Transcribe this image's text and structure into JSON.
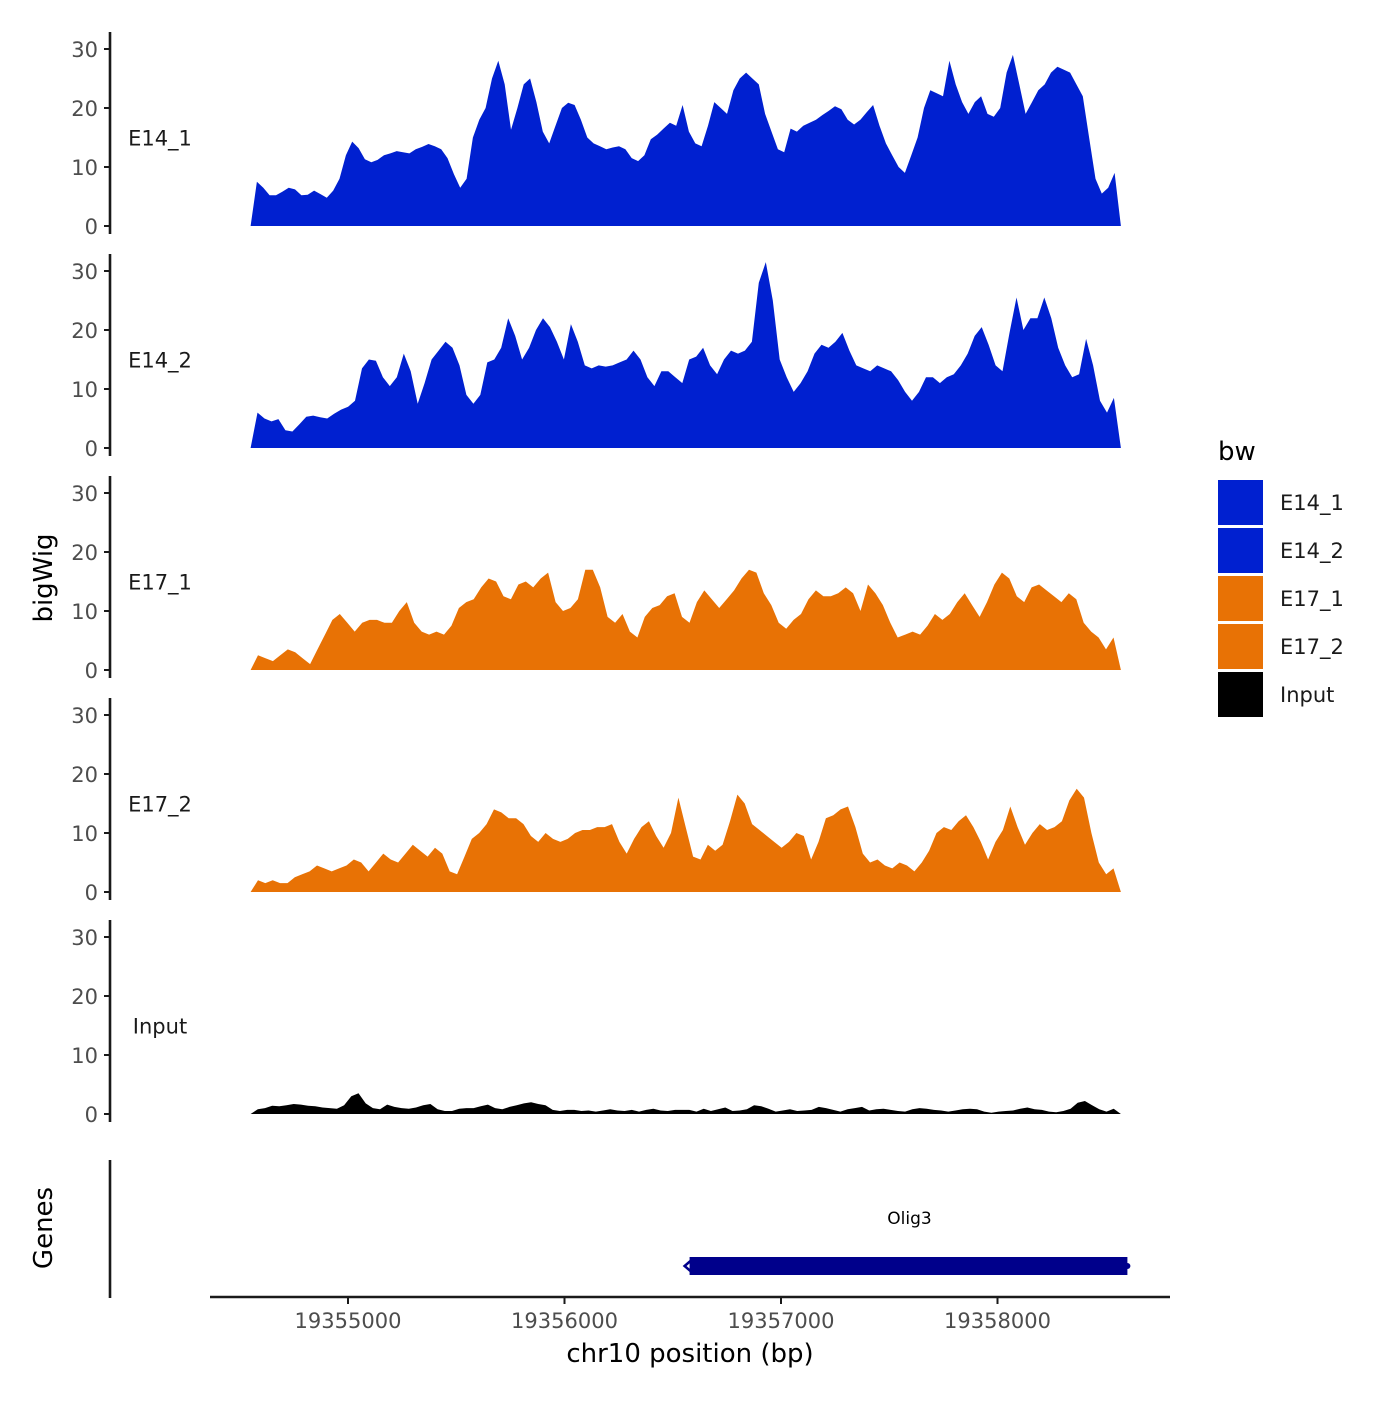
{
  "chart_data": {
    "type": "area",
    "title": "",
    "ylabel": "bigWig",
    "xlabel": "chr10 position (bp)",
    "chromosome": "chr10",
    "x_range": [
      19354550,
      19358570
    ],
    "xlim": [
      19354250,
      19358700
    ],
    "ylim": [
      0,
      32
    ],
    "x_ticks": [
      19355000,
      19356000,
      19357000,
      19358000
    ],
    "x_tick_labels": [
      "19355000",
      "19356000",
      "19357000",
      "19358000"
    ],
    "y_ticks": [
      0,
      10,
      20,
      30
    ],
    "y_tick_labels": [
      "0",
      "10",
      "20",
      "30"
    ],
    "legend": {
      "title": "bw",
      "position": "right",
      "entries": [
        {
          "label": "E14_1",
          "color": "#0020D0"
        },
        {
          "label": "E14_2",
          "color": "#0020D0"
        },
        {
          "label": "E17_1",
          "color": "#E87205"
        },
        {
          "label": "E17_2",
          "color": "#E87205"
        },
        {
          "label": "Input",
          "color": "#000000"
        }
      ]
    },
    "series": [
      {
        "name": "E14_1",
        "label": "E14_1",
        "color": "#0020D0",
        "values": [
          0,
          7.5,
          6.5,
          5.2,
          5.2,
          5.8,
          6.5,
          6.2,
          5.2,
          5.3,
          6.0,
          5.4,
          4.8,
          6.0,
          8.0,
          12.0,
          14.3,
          13.2,
          11.3,
          10.8,
          11.2,
          12.0,
          12.3,
          12.7,
          12.5,
          12.3,
          13.0,
          13.4,
          13.9,
          13.5,
          13.0,
          11.5,
          8.8,
          6.5,
          8.0,
          15.0,
          18.0,
          20.0,
          25.0,
          28.0,
          24.0,
          16.3,
          20.0,
          24.0,
          25.0,
          21.0,
          16.0,
          14.0,
          17.0,
          20.0,
          20.9,
          20.5,
          18.0,
          15.0,
          14.0,
          13.5,
          13.0,
          13.3,
          13.5,
          13.0,
          11.5,
          11.0,
          12.0,
          14.7,
          15.5,
          16.5,
          17.5,
          17.0,
          20.5,
          16.0,
          14.0,
          13.5,
          17.0,
          21.0,
          20.0,
          19.0,
          23.0,
          25.0,
          26.0,
          25.0,
          24.0,
          19.0,
          16.0,
          13.0,
          12.5,
          16.5,
          16.0,
          17.0,
          17.5,
          18.0,
          18.8,
          19.5,
          20.3,
          19.8,
          18.0,
          17.2,
          18.0,
          19.3,
          20.5,
          17.0,
          14.0,
          12.0,
          10.0,
          9.0,
          12.0,
          15.0,
          20.0,
          23.0,
          22.5,
          22.0,
          28.0,
          24.0,
          21.0,
          19.0,
          21.0,
          22.0,
          19.0,
          18.5,
          20.0,
          26.0,
          29.0,
          24.0,
          19.0,
          21.0,
          23.0,
          24.0,
          26.0,
          27.0,
          26.5,
          26.0,
          24.0,
          22.0,
          15.0,
          8.0,
          5.5,
          6.5,
          9.0,
          0
        ],
        "y_label_color": "#1a1a1a"
      },
      {
        "name": "E14_2",
        "label": "E14_2",
        "color": "#0020D0",
        "values": [
          0,
          6.0,
          5.0,
          4.5,
          4.9,
          3.0,
          2.8,
          4.0,
          5.3,
          5.5,
          5.2,
          5.0,
          5.8,
          6.5,
          7.0,
          8.0,
          13.5,
          15.0,
          14.8,
          12.0,
          10.5,
          12.0,
          16.0,
          13.0,
          7.5,
          11.0,
          15.0,
          16.5,
          18.0,
          17.0,
          14.0,
          9.0,
          7.5,
          9.0,
          14.5,
          15.0,
          17.0,
          22.0,
          19.0,
          15.0,
          17.0,
          20.0,
          22.0,
          20.5,
          18.0,
          15.0,
          21.0,
          18.0,
          14.0,
          13.5,
          14.0,
          13.8,
          14.0,
          14.5,
          15.0,
          16.5,
          15.0,
          12.0,
          10.5,
          13.0,
          13.0,
          12.0,
          11.0,
          15.0,
          15.5,
          17.0,
          14.0,
          12.5,
          15.0,
          16.5,
          16.0,
          16.5,
          18.0,
          28.0,
          31.5,
          25.0,
          15.0,
          12.0,
          9.5,
          11.0,
          13.0,
          16.0,
          17.5,
          17.0,
          18.0,
          19.5,
          16.5,
          14.0,
          13.5,
          13.0,
          14.0,
          13.5,
          13.0,
          11.5,
          9.5,
          8.0,
          9.5,
          12.0,
          12.0,
          11.0,
          12.0,
          12.5,
          14.0,
          16.0,
          19.0,
          20.5,
          17.5,
          14.0,
          13.0,
          19.5,
          25.5,
          20.0,
          22.0,
          22.0,
          25.5,
          22.0,
          17.0,
          14.0,
          12.0,
          12.5,
          18.5,
          14.0,
          8.0,
          6.0,
          8.5,
          0
        ],
        "y_label_color": "#1a1a1a"
      },
      {
        "name": "E17_1",
        "label": "E17_1",
        "color": "#E87205",
        "values": [
          0,
          2.5,
          2.0,
          1.5,
          2.5,
          3.5,
          3.0,
          2.0,
          1.0,
          3.5,
          6.0,
          8.5,
          9.5,
          8.0,
          6.5,
          8.0,
          8.5,
          8.5,
          8.0,
          8.0,
          10.0,
          11.5,
          8.0,
          6.5,
          6.0,
          6.5,
          6.0,
          7.5,
          10.5,
          11.5,
          12.0,
          14.0,
          15.5,
          15.0,
          12.5,
          12.0,
          14.5,
          15.0,
          14.0,
          15.5,
          16.5,
          11.5,
          10.0,
          10.5,
          12.0,
          17.0,
          17.0,
          14.0,
          9.0,
          8.0,
          9.5,
          6.5,
          5.5,
          9.0,
          10.5,
          11.0,
          12.5,
          13.0,
          9.0,
          8.0,
          11.5,
          13.5,
          12.0,
          10.5,
          12.0,
          13.5,
          15.5,
          17.0,
          16.5,
          13.0,
          11.0,
          8.0,
          7.0,
          8.5,
          9.5,
          12.0,
          13.5,
          12.5,
          12.5,
          13.0,
          14.0,
          13.0,
          10.0,
          14.5,
          13.0,
          11.0,
          8.0,
          5.5,
          6.0,
          6.5,
          6.0,
          7.5,
          9.5,
          8.5,
          9.5,
          11.5,
          13.0,
          11.0,
          9.0,
          11.5,
          14.5,
          16.5,
          15.5,
          12.5,
          11.5,
          14.0,
          14.5,
          13.5,
          12.5,
          11.5,
          13.0,
          12.0,
          8.0,
          6.5,
          5.5,
          3.5,
          5.5,
          0
        ],
        "y_label_color": "#1a1a1a"
      },
      {
        "name": "E17_2",
        "label": "E17_2",
        "color": "#E87205",
        "values": [
          0,
          2.0,
          1.5,
          2.0,
          1.5,
          1.5,
          2.5,
          3.0,
          3.5,
          4.5,
          4.0,
          3.5,
          4.0,
          4.5,
          5.5,
          5.0,
          3.5,
          5.0,
          6.5,
          5.5,
          5.0,
          6.5,
          8.0,
          7.0,
          6.0,
          7.5,
          6.5,
          3.5,
          3.0,
          6.0,
          9.0,
          10.0,
          11.5,
          14.0,
          13.5,
          12.5,
          12.5,
          11.5,
          9.5,
          8.5,
          10.0,
          9.0,
          8.5,
          9.0,
          10.0,
          10.5,
          10.5,
          11.0,
          11.0,
          11.5,
          8.5,
          6.5,
          9.0,
          11.0,
          12.0,
          9.5,
          7.5,
          10.0,
          16.0,
          11.0,
          6.0,
          5.5,
          8.0,
          7.0,
          8.0,
          12.0,
          16.5,
          15.0,
          11.5,
          10.5,
          9.5,
          8.5,
          7.5,
          8.5,
          10.0,
          9.5,
          5.5,
          8.5,
          12.5,
          13.0,
          14.0,
          14.5,
          11.0,
          6.5,
          5.0,
          5.5,
          4.5,
          4.0,
          5.0,
          4.5,
          3.5,
          5.0,
          7.0,
          10.0,
          11.0,
          10.5,
          12.0,
          13.0,
          11.0,
          8.5,
          5.5,
          8.5,
          10.5,
          14.5,
          11.0,
          8.0,
          10.0,
          11.5,
          10.5,
          11.0,
          12.0,
          15.5,
          17.5,
          16.0,
          10.0,
          5.0,
          3.0,
          4.0,
          0
        ],
        "y_label_color": "#1a1a1a"
      },
      {
        "name": "Input",
        "label": "Input",
        "color": "#000000",
        "values": [
          0,
          0.8,
          1.0,
          1.4,
          1.3,
          1.5,
          1.7,
          1.6,
          1.4,
          1.3,
          1.1,
          1.0,
          0.9,
          1.5,
          3.0,
          3.5,
          1.8,
          1.0,
          0.8,
          1.6,
          1.2,
          1.0,
          0.9,
          1.1,
          1.5,
          1.7,
          0.8,
          0.5,
          0.5,
          0.9,
          1.0,
          1.0,
          1.3,
          1.6,
          1.0,
          0.8,
          1.2,
          1.5,
          1.8,
          2.0,
          1.7,
          1.5,
          0.7,
          0.5,
          0.7,
          0.7,
          0.5,
          0.6,
          0.4,
          0.6,
          0.8,
          0.6,
          0.5,
          0.7,
          0.4,
          0.7,
          0.9,
          0.6,
          0.5,
          0.7,
          0.7,
          0.7,
          0.4,
          0.9,
          0.5,
          0.8,
          1.1,
          0.5,
          0.6,
          0.8,
          1.5,
          1.3,
          0.9,
          0.4,
          0.6,
          0.8,
          0.5,
          0.6,
          0.7,
          1.2,
          1.0,
          0.7,
          0.4,
          0.8,
          1.0,
          1.2,
          0.6,
          0.8,
          0.9,
          0.7,
          0.5,
          0.4,
          0.8,
          1.0,
          0.9,
          0.7,
          0.6,
          0.4,
          0.6,
          0.8,
          0.9,
          0.8,
          0.4,
          0.2,
          0.4,
          0.5,
          0.6,
          0.9,
          1.1,
          0.8,
          0.7,
          0.4,
          0.3,
          0.5,
          0.9,
          1.9,
          2.2,
          1.5,
          0.8,
          0.4,
          0.9,
          0
        ]
      }
    ],
    "genes_track": {
      "label": "Genes",
      "genes": [
        {
          "name": "Olig3",
          "start": 19356550,
          "end": 19358600,
          "color": "#00008B",
          "strand": "-"
        }
      ]
    }
  },
  "colors": {
    "e14": "#0020D0",
    "e17": "#E87205",
    "input": "#000000",
    "gene": "#00008B",
    "axis": "#1a1a1a",
    "tick_text": "#4d4d4d"
  }
}
